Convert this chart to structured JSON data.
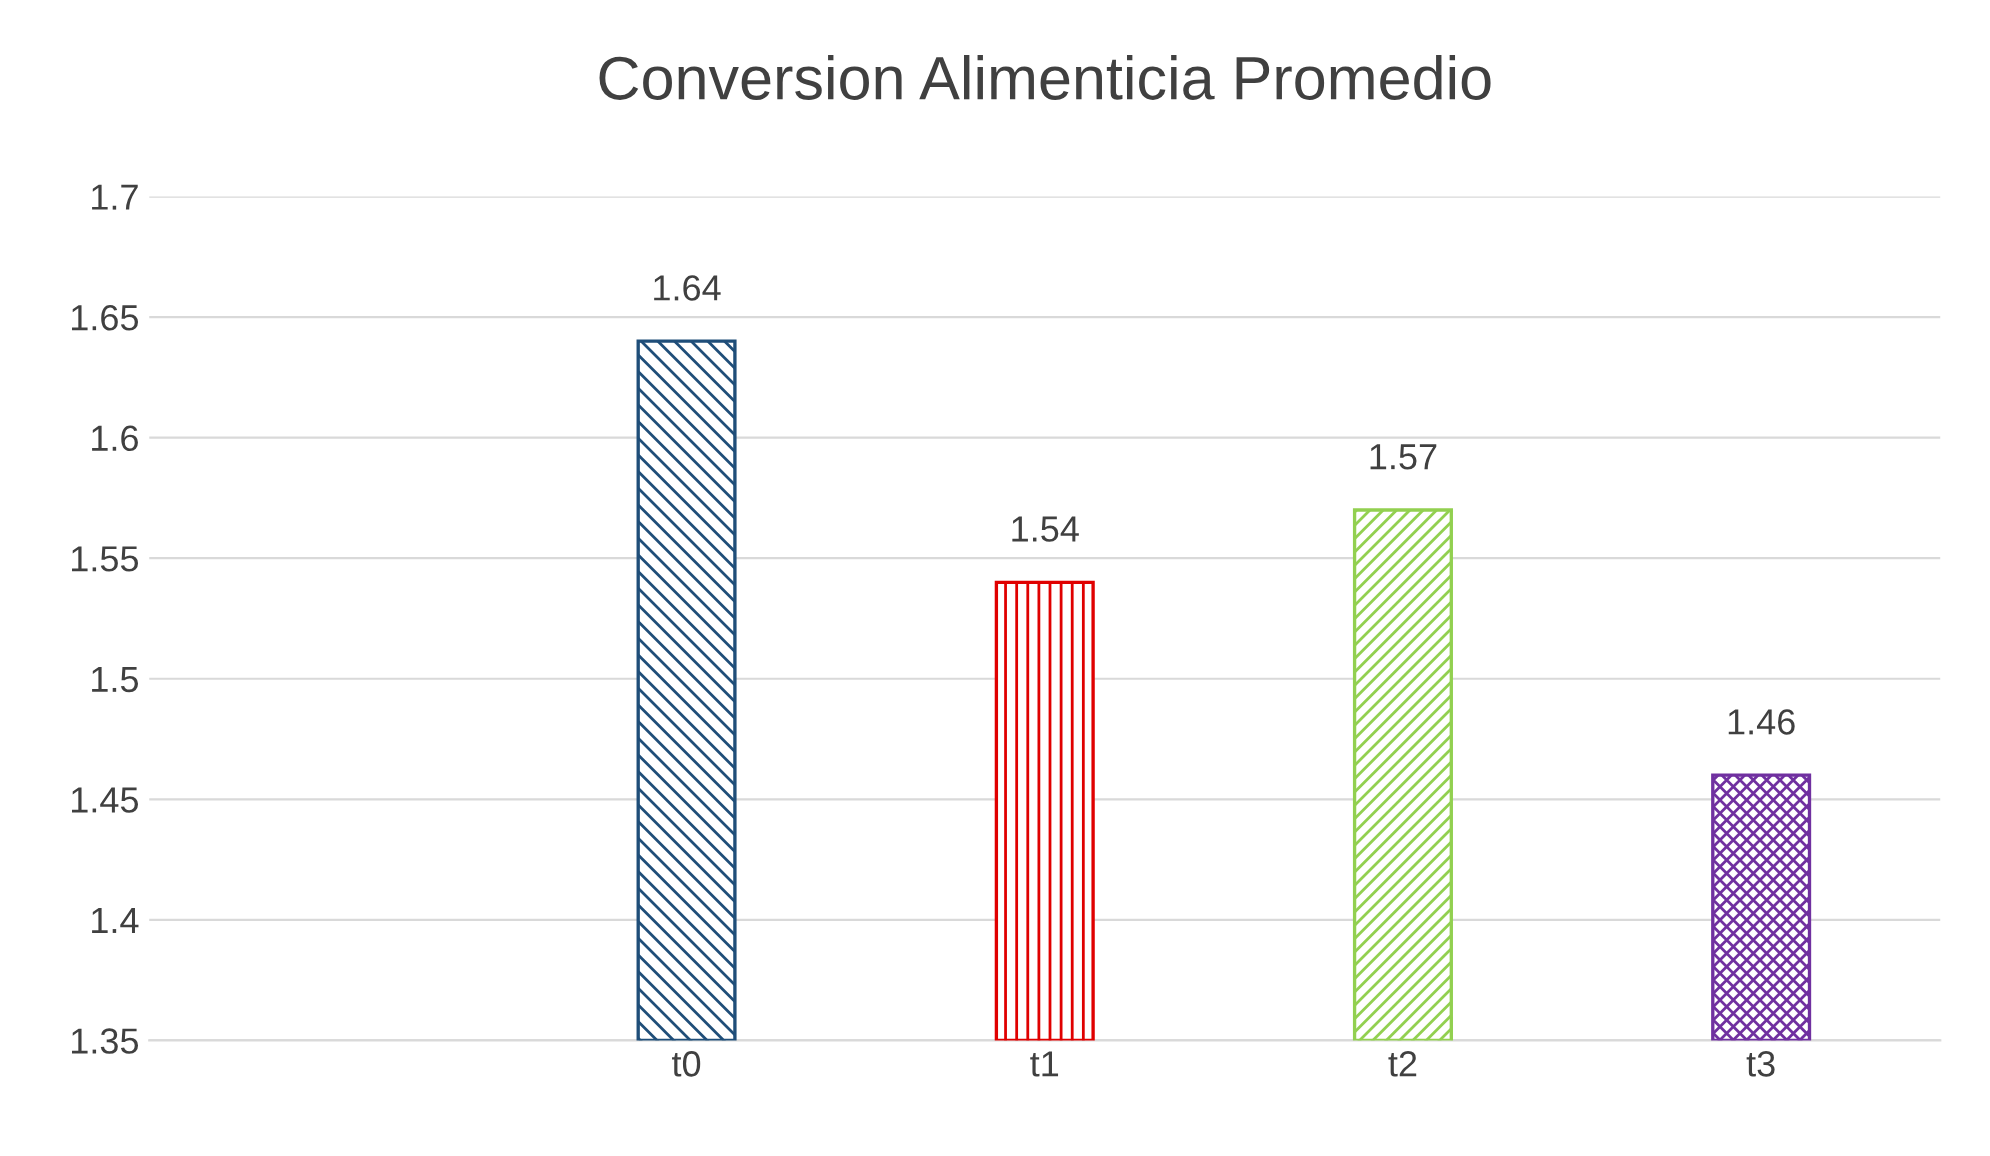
{
  "chart_data": {
    "type": "bar",
    "title": "Conversion Alimenticia Promedio",
    "categories": [
      null,
      "t0",
      "t1",
      "t2",
      "t3"
    ],
    "values": [
      null,
      1.64,
      1.54,
      1.57,
      1.46
    ],
    "colors": [
      "#1f4e79",
      "#1f4e79",
      "#e00000",
      "#92d050",
      "#7030a0"
    ],
    "ylim": [
      1.35,
      1.7
    ],
    "yticks": [
      1.35,
      1.4,
      1.45,
      1.5,
      1.55,
      1.6,
      1.65,
      1.7
    ],
    "grid": "y",
    "data_labels": true
  }
}
